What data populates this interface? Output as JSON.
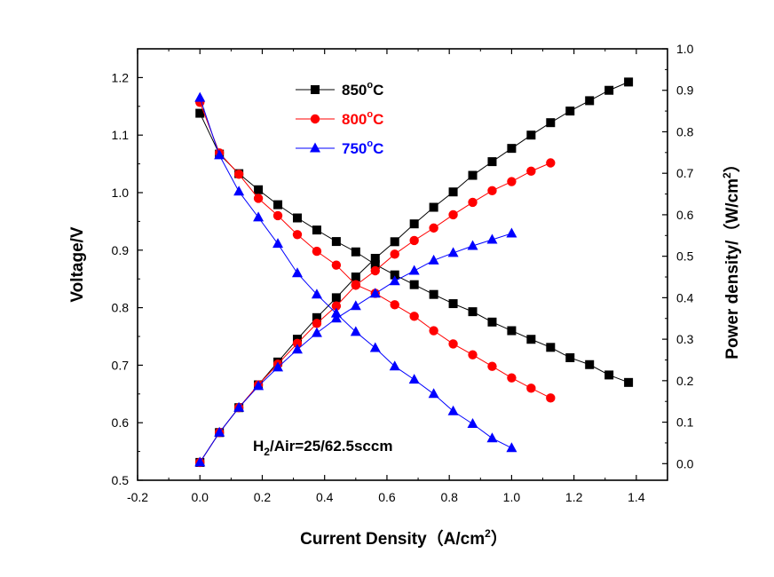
{
  "chart_data": {
    "type": "line",
    "title": "",
    "xlabel": "Current Density（A/cm",
    "xlabel_sup": "2",
    "xlabel_end": "）",
    "ylabel_left": "Voltage/V",
    "ylabel_right": "Power density/（W/cm",
    "ylabel_right_sup": "2",
    "ylabel_right_end": "）",
    "xlim": [
      -0.2,
      1.5
    ],
    "ylim_left": [
      0.5,
      1.25
    ],
    "ylim_right": [
      -0.04,
      1.0
    ],
    "x_ticks": [
      "-0.2",
      "0.0",
      "0.2",
      "0.4",
      "0.6",
      "0.8",
      "1.0",
      "1.2",
      "1.4"
    ],
    "y_left_ticks": [
      "0.5",
      "0.6",
      "0.7",
      "0.8",
      "0.9",
      "1.0",
      "1.1",
      "1.2"
    ],
    "y_right_ticks": [
      "0.0",
      "0.1",
      "0.2",
      "0.3",
      "0.4",
      "0.5",
      "0.6",
      "0.7",
      "0.8",
      "0.9",
      "1.0"
    ],
    "annotation": {
      "prefix": "H",
      "sub": "2",
      "suffix": "/Air=25/62.5sccm"
    },
    "legend_position": "top-left",
    "series": [
      {
        "name": "850",
        "degree": "o",
        "unit": "C",
        "color": "#000000",
        "marker": "square",
        "x": [
          0.0,
          0.0625,
          0.125,
          0.1875,
          0.25,
          0.3125,
          0.375,
          0.4375,
          0.5,
          0.5625,
          0.625,
          0.6875,
          0.75,
          0.8125,
          0.875,
          0.9375,
          1.0,
          1.0625,
          1.125,
          1.1875,
          1.25,
          1.3125,
          1.375
        ],
        "voltage": [
          1.138,
          1.067,
          1.033,
          1.005,
          0.979,
          0.956,
          0.935,
          0.915,
          0.897,
          0.875,
          0.857,
          0.84,
          0.823,
          0.807,
          0.793,
          0.775,
          0.76,
          0.745,
          0.731,
          0.713,
          0.701,
          0.683,
          0.67
        ],
        "power": [
          0.003,
          0.075,
          0.135,
          0.19,
          0.245,
          0.3,
          0.352,
          0.4,
          0.45,
          0.495,
          0.535,
          0.578,
          0.618,
          0.655,
          0.695,
          0.728,
          0.76,
          0.792,
          0.822,
          0.85,
          0.875,
          0.9,
          0.92
        ]
      },
      {
        "name": "800",
        "degree": "o",
        "unit": "C",
        "color": "#ff0000",
        "marker": "circle",
        "x": [
          0.0,
          0.0625,
          0.125,
          0.1875,
          0.25,
          0.3125,
          0.375,
          0.4375,
          0.5,
          0.5625,
          0.625,
          0.6875,
          0.75,
          0.8125,
          0.875,
          0.9375,
          1.0,
          1.0625,
          1.125
        ],
        "voltage": [
          1.157,
          1.069,
          1.032,
          0.99,
          0.96,
          0.927,
          0.898,
          0.874,
          0.84,
          0.825,
          0.805,
          0.785,
          0.76,
          0.737,
          0.718,
          0.698,
          0.678,
          0.66,
          0.643
        ],
        "power": [
          0.003,
          0.075,
          0.135,
          0.19,
          0.24,
          0.29,
          0.338,
          0.38,
          0.43,
          0.465,
          0.505,
          0.538,
          0.568,
          0.6,
          0.63,
          0.658,
          0.68,
          0.705,
          0.725
        ]
      },
      {
        "name": "750",
        "degree": "o",
        "unit": "C",
        "color": "#0000ff",
        "marker": "triangle",
        "x": [
          0.0,
          0.0625,
          0.125,
          0.1875,
          0.25,
          0.3125,
          0.375,
          0.4375,
          0.5,
          0.5625,
          0.625,
          0.6875,
          0.75,
          0.8125,
          0.875,
          0.9375,
          1.0
        ],
        "voltage": [
          1.165,
          1.065,
          1.002,
          0.957,
          0.911,
          0.86,
          0.823,
          0.79,
          0.758,
          0.73,
          0.698,
          0.675,
          0.65,
          0.62,
          0.598,
          0.573,
          0.556
        ],
        "power": [
          0.003,
          0.075,
          0.135,
          0.187,
          0.232,
          0.275,
          0.315,
          0.35,
          0.38,
          0.41,
          0.44,
          0.465,
          0.49,
          0.508,
          0.525,
          0.54,
          0.555
        ]
      }
    ]
  }
}
